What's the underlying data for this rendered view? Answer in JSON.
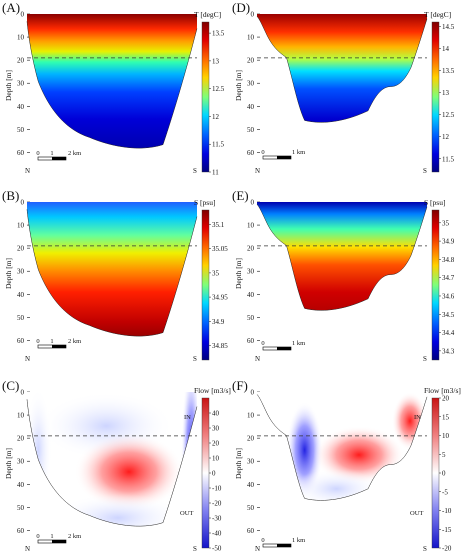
{
  "panels": [
    {
      "id": "A",
      "letter": "(A)",
      "ylabel": "Depth [m]",
      "yticks": [
        "0",
        "10",
        "20",
        "30",
        "40",
        "50",
        "60"
      ],
      "colorbar": {
        "title": "T [degC]",
        "ticks": [
          "13.5",
          "13",
          "12.5",
          "12",
          "11.5",
          "11"
        ],
        "min": 11,
        "max": 13.7,
        "gradient": "jet"
      },
      "dashed_depth": 19,
      "left_label": "N",
      "right_label": "S",
      "scale_labels": [
        "0",
        "1",
        "2 km"
      ]
    },
    {
      "id": "D",
      "letter": "(D)",
      "ylabel": "Depth [m]",
      "yticks": [
        "0",
        "10",
        "20",
        "30",
        "40",
        "50",
        "60"
      ],
      "colorbar": {
        "title": "T [degC]",
        "ticks": [
          "14.5",
          "14",
          "13.5",
          "13",
          "12.5",
          "12",
          "11.5"
        ],
        "min": 11.2,
        "max": 14.6,
        "gradient": "jet"
      },
      "dashed_depth": 19,
      "left_label": "N",
      "right_label": "S",
      "scale_labels": [
        "0",
        "1 km"
      ]
    },
    {
      "id": "B",
      "letter": "(B)",
      "ylabel": "Depth [m]",
      "yticks": [
        "0",
        "10",
        "20",
        "30",
        "40",
        "50",
        "60"
      ],
      "colorbar": {
        "title": "S [psu]",
        "ticks": [
          "35.1",
          "35.05",
          "35",
          "34.95",
          "34.9",
          "34.85"
        ],
        "min": 34.82,
        "max": 35.13,
        "gradient": "jet"
      },
      "dashed_depth": 19,
      "left_label": "N",
      "right_label": "S",
      "scale_labels": [
        "0",
        "1",
        "2 km"
      ]
    },
    {
      "id": "E",
      "letter": "(E)",
      "ylabel": "Depth [m]",
      "yticks": [
        "0",
        "10",
        "20",
        "30",
        "40",
        "50",
        "60"
      ],
      "colorbar": {
        "title": "S [psu]",
        "ticks": [
          "35",
          "34.9",
          "34.8",
          "34.7",
          "34.6",
          "34.5",
          "34.4",
          "34.3"
        ],
        "min": 34.25,
        "max": 35.07,
        "gradient": "jet"
      },
      "dashed_depth": 19,
      "left_label": "N",
      "right_label": "S",
      "scale_labels": [
        "0",
        "1 km"
      ]
    },
    {
      "id": "C",
      "letter": "(C)",
      "ylabel": "Depth [m]",
      "yticks": [
        "0",
        "10",
        "20",
        "30",
        "40",
        "50",
        "60"
      ],
      "colorbar": {
        "title": "Flow [m3/s]",
        "ticks": [
          "40",
          "30",
          "20",
          "10",
          "0",
          "-10",
          "-20",
          "-30",
          "-40",
          "-50"
        ],
        "min": -50,
        "max": 50,
        "gradient": "bwr",
        "in_label": "IN",
        "out_label": "OUT"
      },
      "dashed_depth": 19,
      "left_label": "N",
      "right_label": "S",
      "scale_labels": [
        "0",
        "1",
        "2 km"
      ]
    },
    {
      "id": "F",
      "letter": "(F)",
      "ylabel": "Depth [m]",
      "yticks": [
        "0",
        "10",
        "20",
        "30",
        "40",
        "50",
        "60"
      ],
      "colorbar": {
        "title": "Flow [m3/s]",
        "ticks": [
          "20",
          "15",
          "10",
          "5",
          "0",
          "-5",
          "-10",
          "-15",
          "-20"
        ],
        "min": -20,
        "max": 20,
        "gradient": "bwr",
        "in_label": "IN",
        "out_label": "OUT"
      },
      "dashed_depth": 19,
      "left_label": "N",
      "right_label": "S",
      "scale_labels": [
        "0",
        "1 km"
      ]
    }
  ],
  "colors": {
    "dashed_line": "#333333",
    "outline": "#222222",
    "scale_bar": "#000000"
  }
}
